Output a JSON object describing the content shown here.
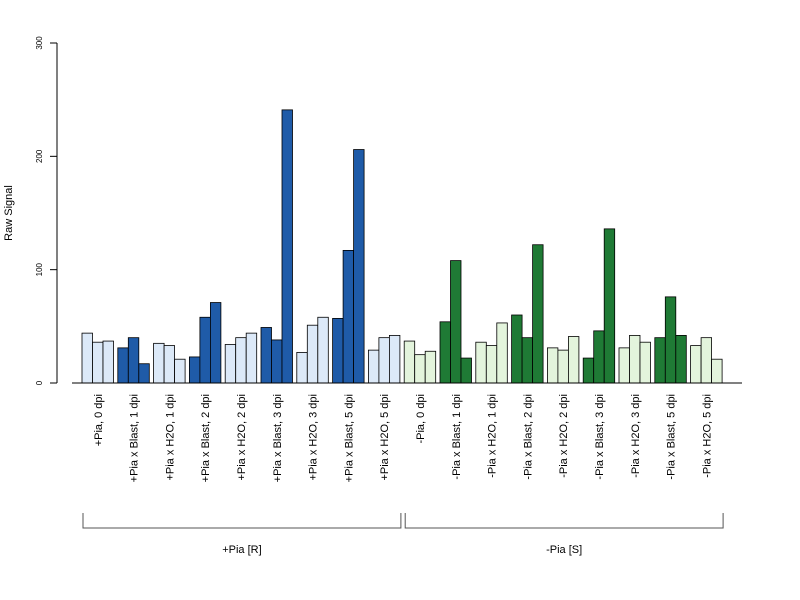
{
  "chart_data": {
    "type": "bar",
    "ylabel": "Raw Signal",
    "ylim": [
      0,
      300
    ],
    "yticks": [
      0,
      100,
      200,
      300
    ],
    "grid": false,
    "colors": {
      "plus_light": "#dce9f8",
      "plus_dark": "#1f5ba8",
      "minus_light": "#e3f4dc",
      "minus_dark": "#1f7a35"
    },
    "categories": [
      "+Pia, 0 dpi",
      "+Pia x Blast, 1 dpi",
      "+Pia x H2O, 1 dpi",
      "+Pia x Blast, 2 dpi",
      "+Pia x H2O, 2 dpi",
      "+Pia x Blast, 3 dpi",
      "+Pia x H2O, 3 dpi",
      "+Pia x Blast, 5 dpi",
      "+Pia x H2O, 5 dpi",
      "-Pia, 0 dpi",
      "-Pia x Blast, 1 dpi",
      "-Pia x H2O, 1 dpi",
      "-Pia x Blast, 2 dpi",
      "-Pia x H2O, 2 dpi",
      "-Pia x Blast, 3 dpi",
      "-Pia x H2O, 3 dpi",
      "-Pia x Blast, 5 dpi",
      "-Pia x H2O, 5 dpi"
    ],
    "values": [
      [
        44,
        36,
        37
      ],
      [
        31,
        40,
        17
      ],
      [
        35,
        33,
        21
      ],
      [
        23,
        58,
        71
      ],
      [
        34,
        40,
        44
      ],
      [
        49,
        38,
        241
      ],
      [
        27,
        51,
        58
      ],
      [
        57,
        117,
        206
      ],
      [
        29,
        40,
        42
      ],
      [
        37,
        25,
        28
      ],
      [
        54,
        108,
        22
      ],
      [
        36,
        33,
        53
      ],
      [
        60,
        40,
        122
      ],
      [
        31,
        29,
        41
      ],
      [
        22,
        46,
        136
      ],
      [
        31,
        42,
        36
      ],
      [
        40,
        76,
        42
      ],
      [
        33,
        40,
        21
      ]
    ],
    "bar_color_key": [
      "plus_light",
      "plus_dark",
      "plus_light",
      "plus_dark",
      "plus_light",
      "plus_dark",
      "plus_light",
      "plus_dark",
      "plus_light",
      "minus_light",
      "minus_dark",
      "minus_light",
      "minus_dark",
      "minus_light",
      "minus_dark",
      "minus_light",
      "minus_dark",
      "minus_light"
    ],
    "groups": [
      {
        "label": "+Pia [R]",
        "first": 0,
        "last": 8
      },
      {
        "label": "-Pia [S]",
        "first": 9,
        "last": 17
      }
    ]
  }
}
